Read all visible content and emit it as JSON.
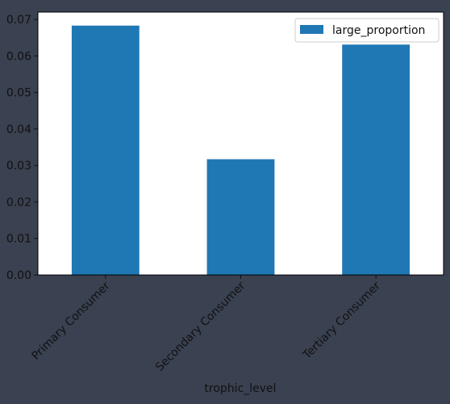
{
  "chart_data": {
    "type": "bar",
    "categories": [
      "Primary Consumer",
      "Secondary Consumer",
      "Tertiary Consumer"
    ],
    "series": [
      {
        "name": "large_proportion",
        "values": [
          0.0683,
          0.0317,
          0.0631
        ]
      }
    ],
    "xlabel": "trophic_level",
    "ylabel": "",
    "ylim": [
      0,
      0.072
    ],
    "yticks": [
      "0.00",
      "0.01",
      "0.02",
      "0.03",
      "0.04",
      "0.05",
      "0.06",
      "0.07"
    ],
    "legend_position": "top-right",
    "grid": false,
    "colors": {
      "bar": "#1f77b4",
      "figure_background": "#3a4150",
      "plot_background": "#ffffff"
    }
  }
}
